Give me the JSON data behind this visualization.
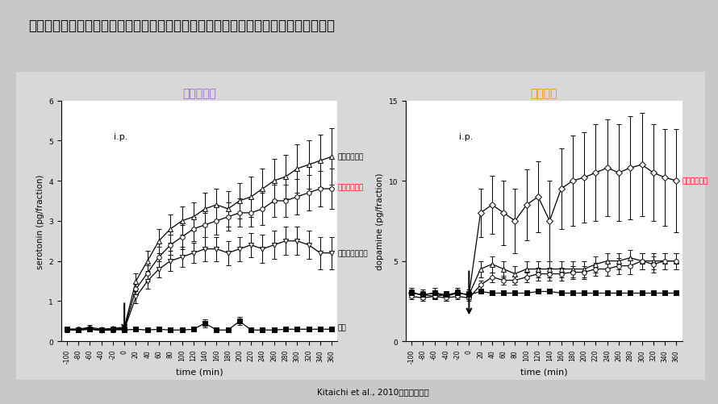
{
  "title": "セルトラリンによる側坐核における細胞外セロトニン・ドパミン量の変化（ラット）",
  "title_fontsize": 12,
  "bg_outer": "#c8c8c8",
  "bg_panel": "#d8d8d8",
  "bg_plot": "#ffffff",
  "citation": "Kitaichi et al., 2010より引用作成",
  "time_points": [
    -100,
    -80,
    -60,
    -40,
    -20,
    0,
    20,
    40,
    60,
    80,
    100,
    120,
    140,
    160,
    180,
    200,
    220,
    240,
    260,
    280,
    300,
    320,
    340,
    360
  ],
  "serotonin_title": "セロトニン",
  "serotonin_title_color": "#9966cc",
  "serotonin_ylabel": "serotonin (pg/fraction)",
  "serotonin_ylim": [
    0,
    6
  ],
  "serotonin_yticks": [
    0,
    1,
    2,
    3,
    4,
    5,
    6
  ],
  "ser_paroxetine": [
    0.3,
    0.3,
    0.35,
    0.3,
    0.32,
    0.35,
    1.5,
    2.0,
    2.5,
    2.8,
    3.0,
    3.1,
    3.3,
    3.4,
    3.3,
    3.5,
    3.6,
    3.8,
    4.0,
    4.1,
    4.3,
    4.4,
    4.5,
    4.6
  ],
  "ser_paroxetine_err": [
    0.05,
    0.05,
    0.05,
    0.05,
    0.05,
    0.05,
    0.2,
    0.25,
    0.3,
    0.35,
    0.35,
    0.35,
    0.4,
    0.4,
    0.45,
    0.45,
    0.5,
    0.5,
    0.55,
    0.55,
    0.6,
    0.6,
    0.65,
    0.7
  ],
  "ser_sertraline": [
    0.3,
    0.3,
    0.32,
    0.28,
    0.3,
    0.32,
    1.3,
    1.7,
    2.1,
    2.4,
    2.6,
    2.8,
    2.9,
    3.0,
    3.1,
    3.2,
    3.2,
    3.3,
    3.5,
    3.5,
    3.6,
    3.7,
    3.8,
    3.8
  ],
  "ser_sertraline_err": [
    0.05,
    0.05,
    0.05,
    0.05,
    0.05,
    0.05,
    0.15,
    0.2,
    0.25,
    0.25,
    0.3,
    0.3,
    0.3,
    0.35,
    0.35,
    0.35,
    0.35,
    0.4,
    0.4,
    0.4,
    0.45,
    0.45,
    0.45,
    0.5
  ],
  "ser_fluvoxamine": [
    0.28,
    0.28,
    0.3,
    0.27,
    0.28,
    0.3,
    1.1,
    1.5,
    1.8,
    2.0,
    2.1,
    2.2,
    2.3,
    2.3,
    2.2,
    2.3,
    2.4,
    2.3,
    2.4,
    2.5,
    2.5,
    2.4,
    2.2,
    2.2
  ],
  "ser_fluvoxamine_err": [
    0.05,
    0.05,
    0.05,
    0.05,
    0.05,
    0.05,
    0.15,
    0.2,
    0.2,
    0.25,
    0.25,
    0.25,
    0.3,
    0.3,
    0.3,
    0.3,
    0.3,
    0.35,
    0.35,
    0.35,
    0.35,
    0.35,
    0.4,
    0.4
  ],
  "ser_vehicle": [
    0.3,
    0.28,
    0.3,
    0.28,
    0.3,
    0.28,
    0.3,
    0.28,
    0.3,
    0.28,
    0.28,
    0.3,
    0.45,
    0.28,
    0.28,
    0.5,
    0.28,
    0.28,
    0.28,
    0.3,
    0.3,
    0.3,
    0.3,
    0.3
  ],
  "ser_vehicle_err": [
    0.03,
    0.03,
    0.03,
    0.03,
    0.03,
    0.03,
    0.03,
    0.03,
    0.03,
    0.03,
    0.03,
    0.03,
    0.1,
    0.03,
    0.03,
    0.1,
    0.03,
    0.03,
    0.03,
    0.03,
    0.03,
    0.03,
    0.03,
    0.03
  ],
  "dopamine_title": "ドパミン",
  "dopamine_title_color": "#ff8c00",
  "dopamine_ylabel": "dopamine (pg/fraction)",
  "dopamine_ylim": [
    0,
    15
  ],
  "dopamine_yticks": [
    0,
    5,
    10,
    15
  ],
  "dop_sertraline": [
    3.0,
    2.9,
    3.0,
    2.8,
    3.0,
    2.9,
    8.0,
    8.5,
    8.0,
    7.5,
    8.5,
    9.0,
    7.5,
    9.5,
    10.0,
    10.2,
    10.5,
    10.8,
    10.5,
    10.8,
    11.0,
    10.5,
    10.2,
    10.0
  ],
  "dop_sertraline_err": [
    0.3,
    0.3,
    0.3,
    0.3,
    0.3,
    0.3,
    1.5,
    1.8,
    2.0,
    2.0,
    2.2,
    2.2,
    2.5,
    2.5,
    2.8,
    2.8,
    3.0,
    3.0,
    3.0,
    3.2,
    3.2,
    3.0,
    3.0,
    3.2
  ],
  "dop_paroxetine": [
    3.0,
    2.9,
    2.8,
    2.9,
    3.0,
    2.9,
    4.5,
    4.8,
    4.5,
    4.2,
    4.5,
    4.5,
    4.5,
    4.5,
    4.5,
    4.5,
    4.8,
    5.0,
    5.0,
    5.2,
    5.0,
    5.0,
    5.0,
    5.0
  ],
  "dop_paroxetine_err": [
    0.2,
    0.2,
    0.2,
    0.2,
    0.2,
    0.2,
    0.5,
    0.5,
    0.5,
    0.5,
    0.5,
    0.5,
    0.5,
    0.5,
    0.5,
    0.5,
    0.5,
    0.5,
    0.5,
    0.5,
    0.5,
    0.5,
    0.5,
    0.5
  ],
  "dop_fluvoxamine": [
    2.8,
    2.7,
    2.8,
    2.7,
    2.8,
    2.7,
    3.5,
    4.0,
    3.8,
    3.8,
    4.0,
    4.2,
    4.2,
    4.2,
    4.3,
    4.3,
    4.5,
    4.5,
    4.7,
    4.7,
    5.0,
    4.8,
    5.0,
    5.0
  ],
  "dop_fluvoxamine_err": [
    0.2,
    0.2,
    0.2,
    0.2,
    0.2,
    0.2,
    0.3,
    0.3,
    0.3,
    0.3,
    0.3,
    0.4,
    0.4,
    0.4,
    0.4,
    0.4,
    0.4,
    0.4,
    0.5,
    0.5,
    0.5,
    0.5,
    0.5,
    0.5
  ],
  "dop_vehicle": [
    3.0,
    2.9,
    3.0,
    2.9,
    3.0,
    2.9,
    3.1,
    3.0,
    3.0,
    3.0,
    3.0,
    3.1,
    3.1,
    3.0,
    3.0,
    3.0,
    3.0,
    3.0,
    3.0,
    3.0,
    3.0,
    3.0,
    3.0,
    3.0
  ],
  "dop_vehicle_err": [
    0.15,
    0.15,
    0.15,
    0.15,
    0.15,
    0.15,
    0.15,
    0.15,
    0.15,
    0.15,
    0.15,
    0.15,
    0.15,
    0.15,
    0.15,
    0.15,
    0.15,
    0.15,
    0.15,
    0.15,
    0.15,
    0.15,
    0.15,
    0.15
  ],
  "xlabel": "time (min)",
  "label_paroxetine": "パロキセチン",
  "label_sertraline_red": "セルトラリン",
  "label_fluvoxamine": "フルボキサミン",
  "label_vehicle": "溶媒",
  "label_sertraline_right": "セルトラリン"
}
